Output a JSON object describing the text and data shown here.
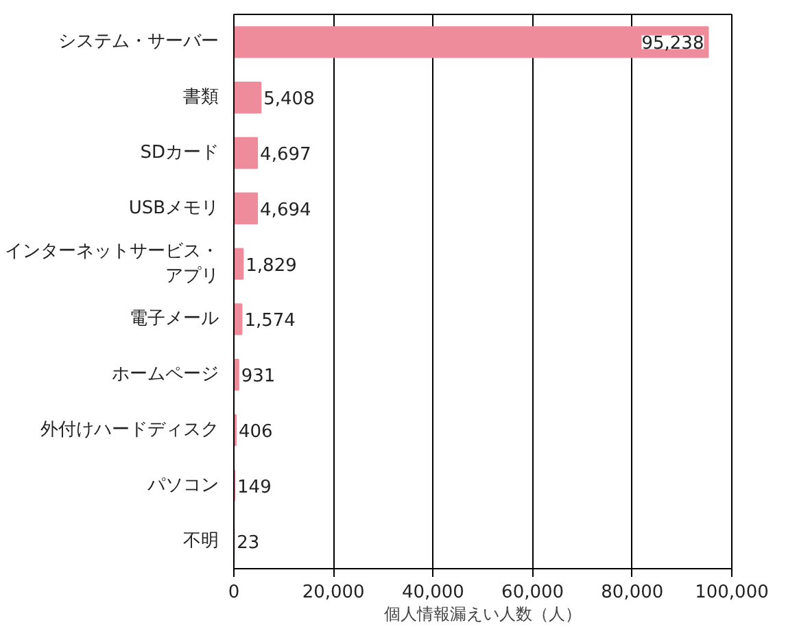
{
  "chart_data": {
    "type": "bar",
    "orientation": "horizontal",
    "xlabel": "個人情報漏えい人数（人）",
    "categories": [
      "システム・サーバー",
      "書類",
      "SDカード",
      "USBメモリ",
      "インターネットサービス・アプリ",
      "電子メール",
      "ホームページ",
      "外付けハードディスク",
      "パソコン",
      "不明"
    ],
    "values": [
      95238,
      5408,
      4697,
      4694,
      1829,
      1574,
      931,
      406,
      149,
      23
    ],
    "color": "#ef8c9c",
    "xlim": [
      0,
      100000
    ],
    "xticks": [
      {
        "value": 0,
        "label": "0"
      },
      {
        "value": 20000,
        "label": "20,000"
      },
      {
        "value": 40000,
        "label": "40,000"
      },
      {
        "value": 60000,
        "label": "60,000"
      },
      {
        "value": 80000,
        "label": "80,000"
      },
      {
        "value": 100000,
        "label": "100,000"
      }
    ],
    "grid": "x",
    "value_labels": [
      "95,238",
      "5,408",
      "4,697",
      "4,694",
      "1,829",
      "1,574",
      "931",
      "406",
      "149",
      "23"
    ]
  }
}
